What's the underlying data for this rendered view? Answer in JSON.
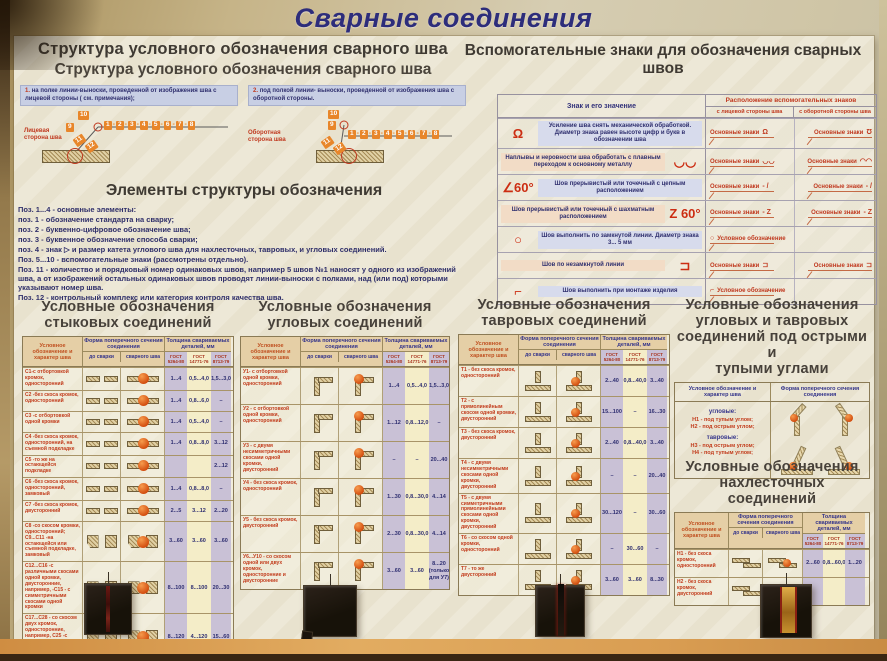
{
  "title": "Сварные соединения",
  "structure": {
    "heading1": "Структура условного обозначения сварного шва",
    "heading2": "Структура условного обозначения сварного шва",
    "note1": {
      "num": "1.",
      "text": "на полке линии-выноски, проведенной от изображения шва с лицевой стороны ( см. примечания);"
    },
    "note2": {
      "num": "2.",
      "text": "под полкой линии- выноски, проведенной от изображения шва с оборотной стороны."
    },
    "diagram1_label": "Лицевая сторона шва",
    "diagram2_label": "Оборотная сторона шва",
    "positions": [
      "1",
      "2",
      "3",
      "4",
      "5",
      "6",
      "7",
      "8"
    ],
    "float_positions": [
      "10",
      "9",
      "11",
      "12"
    ]
  },
  "elements": {
    "heading": "Элементы структуры обозначения",
    "lines": [
      "Поз. 1...4 - основные элементы:",
      "поз. 1 - обозначение стандарта на сварку;",
      "поз. 2 - буквенно-цифровое обозначение шва;",
      "поз. 3 - буквенное обозначение способа сварки;",
      "поз. 4 - знак ▷ и размер катета углового шва для нахлесточных, тавровых, и угловых соединений.",
      "Поз. 5...10 - вспомогательные знаки (рассмотрены отдельно).",
      "Поз. 11 - количество и порядковый номер одинаковых швов, например 5 швов №1 наносят у одного из изображений шва, а от изображений остальных одинаковых швов проводят линии-выноски с полками, над (или под) которыми указывают номер шва.",
      "Поз. 12 - контрольный комплекс или категория контроля качества шва."
    ]
  },
  "aux": {
    "heading": "Вспомогательные знаки для обозначения сварных швов",
    "col_sign": "Знак и его значение",
    "col_place": "Расположение вспомогательных знаков",
    "col_front": "с лицевой стороны шва",
    "col_back": "с оборотной стороны шва",
    "rows": [
      {
        "sym": "Ω",
        "meaning": "Усиление шва снять механической обработкой. Диаметр знака равен высоте цифр и букв в обозначении шва",
        "front": "Основные знаки",
        "front_sym": "Ω",
        "back": "Основные знаки",
        "back_sym": "Ʊ",
        "sym_first": false
      },
      {
        "sym": "◡◡",
        "meaning": "Наплывы и неровности шва обработать с плавным переходом к основному металлу",
        "front": "Основные знаки",
        "front_sym": "◡◡",
        "back": "Основные знаки",
        "back_sym": "◠◠",
        "sym_first": false
      },
      {
        "sym": "∠60°",
        "meaning": "Шов прерывистый или точечный с цепным расположением",
        "front": "Основные знаки",
        "front_sym": "- /",
        "back": "Основные знаки",
        "back_sym": "- /",
        "sym_first": false
      },
      {
        "sym": "Z 60°",
        "meaning": "Шов прерывистый или точечный с шахматным расположением",
        "front": "Основные знаки",
        "front_sym": "- Z",
        "back": "Основные знаки",
        "back_sym": "- Z",
        "sym_first": false
      },
      {
        "sym": "○",
        "meaning": "Шов выполнить по замкнутой линии. Диаметр знака 3... 5 мм",
        "front": "Условное обозначение",
        "front_sym": "○",
        "back": "",
        "back_sym": "",
        "sym_first": true
      },
      {
        "sym": "⊐",
        "meaning": "Шов по незамкнутой линии",
        "front": "Основные знаки",
        "front_sym": "⊐",
        "back": "Основные знаки",
        "back_sym": "⊐",
        "sym_first": false
      },
      {
        "sym": "⌐",
        "meaning": "Шов выполнить при монтаже изделия",
        "front": "Условное обозначение",
        "front_sym": "⌐",
        "back": "",
        "back_sym": "",
        "sym_first": true
      }
    ]
  },
  "joint_headers": {
    "label": "Условное обозначение и характер шва",
    "shape": "Форма поперечного сечения соединения",
    "pre": "до сварки",
    "post": "сварного шва",
    "thick": "Толщина свариваемых деталей, мм",
    "gosts": [
      "ГОСТ 5264-80",
      "ГОСТ 14771-76",
      "ГОСТ 8713-79"
    ]
  },
  "tables": {
    "butt": {
      "title_lines": [
        "Условные обозначения",
        "стыковых соединений"
      ],
      "rows": [
        {
          "label": "С1-с отбортовкой кромок, односторонний",
          "shape": "butt",
          "values": [
            "1...4",
            "0,5...4,0",
            "1,5...3,0"
          ]
        },
        {
          "label": "С2 -без скоса кромок, односторонний",
          "shape": "butt",
          "values": [
            "1...4",
            "0,8...6,0",
            "–"
          ]
        },
        {
          "label": "С3 -с отбортовкой одной кромки",
          "shape": "butt",
          "values": [
            "1...4",
            "0,5...4,0",
            "–"
          ]
        },
        {
          "label": "С4 -без скоса кромок, односторонний, на съемной подкладке",
          "shape": "butt",
          "values": [
            "1...4",
            "0,8...8,0",
            "3...12"
          ]
        },
        {
          "label": "С5 -то же на остающейся подкладке",
          "shape": "butt",
          "values": [
            "",
            "",
            "2...12"
          ]
        },
        {
          "label": "С6 -без скоса кромок, односторонний, замковый",
          "shape": "butt",
          "values": [
            "1...4",
            "0,8...8,0",
            "–"
          ]
        },
        {
          "label": "С7 -без скоса кромок, двусторонний",
          "shape": "butt",
          "values": [
            "2...5",
            "3...12",
            "2...20"
          ]
        },
        {
          "label": "С8 -со скосом кромки, односторонний; С9...С11 -на остающейся или съемной подкладке, замковый",
          "shape": "butt-thick",
          "values": [
            "3...60",
            "3...60",
            "3...60"
          ]
        },
        {
          "label": "С12...С16 -с различными скосами одной кромки, двусторонние, например, -С15 - с симметричными скосами одной кромки",
          "shape": "butt-thick",
          "values": [
            "8...100",
            "8...100",
            "20...30"
          ]
        },
        {
          "label": "С17...С28 - со скосом двух кромок, односторонние, например, С25 -с симметричными скосами двух кромок, двусторонний",
          "shape": "butt-thick",
          "values": [
            "8...120",
            "4...120",
            "15...60"
          ]
        }
      ]
    },
    "corner": {
      "title_lines": [
        "Условные обозначения",
        "угловых соединений"
      ],
      "rows": [
        {
          "label": "У1- с отбортовкой одной кромки, односторонний",
          "shape": "corner",
          "values": [
            "1...4",
            "0,5...4,0",
            "1,5...3,0"
          ]
        },
        {
          "label": "У2 - с отбортовкой одной кромки, односторонний",
          "shape": "corner",
          "values": [
            "1...12",
            "0,8...12,0",
            "–"
          ]
        },
        {
          "label": "У3 - с двумя несимметричными скосами одной кромки, двусторонний",
          "shape": "corner",
          "values": [
            "–",
            "–",
            "20...40"
          ]
        },
        {
          "label": "У4 - без скоса кромок, односторонний",
          "shape": "corner",
          "values": [
            "1...30",
            "0,8...30,0",
            "4...14"
          ]
        },
        {
          "label": "У5 - без скоса кромок, двусторонний",
          "shape": "corner",
          "values": [
            "2...30",
            "0,8...30,0",
            "4...14"
          ]
        },
        {
          "label": "У6...У10 - со скосом одной или двух кромок, односторонние и двусторонние",
          "shape": "corner",
          "values": [
            "3...60",
            "3...60",
            "8...20\n(только\nдля У7)"
          ]
        }
      ]
    },
    "tee": {
      "title_lines": [
        "Условные обозначения",
        "тавровых соединений"
      ],
      "rows": [
        {
          "label": "Т1 - без скоса кромок, односторонний",
          "shape": "tee",
          "values": [
            "2...40",
            "0,8...40,0",
            "3...40"
          ]
        },
        {
          "label": "Т2 - с прямолинейным скосом одной кромки, двусторонний",
          "shape": "tee",
          "values": [
            "15...100",
            "–",
            "16...30"
          ]
        },
        {
          "label": "Т3 - без скоса кромок, двусторонний",
          "shape": "tee",
          "values": [
            "2...40",
            "0,8...40,0",
            "3...40"
          ]
        },
        {
          "label": "Т4 - с двумя несимметричными скосами одной кромки, двусторонний",
          "shape": "tee",
          "values": [
            "–",
            "–",
            "20...40"
          ]
        },
        {
          "label": "Т5 - с двумя симметричными прямолинейными скосами одной кромки, двусторонний",
          "shape": "tee",
          "values": [
            "30...120",
            "–",
            "30...60"
          ]
        },
        {
          "label": "Т6 - со скосом одной кромки, односторонний",
          "shape": "tee",
          "values": [
            "–",
            "30...60",
            "–"
          ]
        },
        {
          "label": "Т7 - то же двусторонний",
          "shape": "tee",
          "values": [
            "3...60",
            "3...60",
            "8...30"
          ]
        }
      ]
    },
    "lap": {
      "title_lines": [
        "Условные обозначения",
        "нахлесточных соединений"
      ],
      "rows": [
        {
          "label": "Н1 - без скоса кромок, односторонний",
          "shape": "lap",
          "values": [
            "2...60",
            "0,8...60,0",
            "1...20"
          ]
        },
        {
          "label": "Н2 - без скоса кромок, двусторонний",
          "shape": "lap",
          "values": [
            "",
            "",
            ""
          ]
        }
      ]
    }
  },
  "angles": {
    "title_lines": [
      "Условные обозначения",
      "угловых и  тавровых",
      "соединений под острыми и",
      "тупыми углами"
    ],
    "col1": "Условное обозначение и характер шва",
    "col2": "Форма поперечного сечения соединения",
    "groups": [
      {
        "name": "угловые:",
        "items": [
          "Н1 - под тупым углом;",
          "Н2 - под острым углом;"
        ]
      },
      {
        "name": "тавровые:",
        "items": [
          "Н3 - под острым углом;",
          "Н4 - под тупым углом;"
        ]
      }
    ]
  }
}
